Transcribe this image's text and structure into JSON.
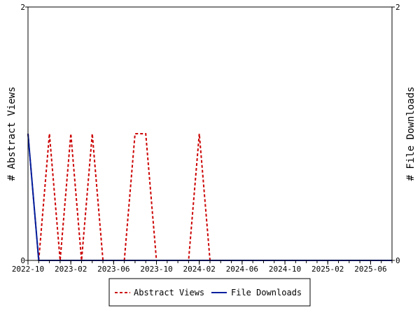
{
  "chart_data": {
    "type": "line",
    "ylabel_left": "# Abstract Views",
    "ylabel_right": "# File Downloads",
    "ylim_left": [
      0,
      2
    ],
    "ylim_right": [
      0,
      2
    ],
    "y_ticks_left": [
      0,
      2
    ],
    "y_ticks_right": [
      0,
      2
    ],
    "x_range": [
      "2022-10",
      "2025-08"
    ],
    "x_tick_labels": [
      "2022-10",
      "2023-02",
      "2023-06",
      "2023-10",
      "2024-02",
      "2024-06",
      "2024-10",
      "2025-02",
      "2025-06"
    ],
    "legend_position": "bottom-center",
    "series": [
      {
        "name": "Abstract Views",
        "color": "#cc0000",
        "style": "dashed",
        "axis": "left",
        "points": [
          [
            "2022-10",
            1
          ],
          [
            "2022-11",
            0
          ],
          [
            "2022-12",
            1
          ],
          [
            "2023-01",
            0
          ],
          [
            "2023-02",
            1
          ],
          [
            "2023-03",
            0
          ],
          [
            "2023-04",
            1
          ],
          [
            "2023-05",
            0
          ],
          [
            "2023-06",
            0
          ],
          [
            "2023-07",
            0
          ],
          [
            "2023-08",
            1
          ],
          [
            "2023-09",
            1
          ],
          [
            "2023-10",
            0
          ],
          [
            "2023-11",
            0
          ],
          [
            "2023-12",
            0
          ],
          [
            "2024-01",
            0
          ],
          [
            "2024-02",
            1
          ],
          [
            "2024-03",
            0
          ],
          [
            "2024-04",
            0
          ],
          [
            "2024-05",
            0
          ],
          [
            "2024-06",
            0
          ],
          [
            "2024-07",
            0
          ],
          [
            "2024-08",
            0
          ],
          [
            "2024-09",
            0
          ],
          [
            "2024-10",
            0
          ],
          [
            "2024-11",
            0
          ],
          [
            "2024-12",
            0
          ],
          [
            "2025-01",
            0
          ],
          [
            "2025-02",
            0
          ],
          [
            "2025-03",
            0
          ],
          [
            "2025-04",
            0
          ],
          [
            "2025-05",
            0
          ],
          [
            "2025-06",
            0
          ],
          [
            "2025-07",
            0
          ],
          [
            "2025-08",
            0
          ]
        ]
      },
      {
        "name": "File Downloads",
        "color": "#00209f",
        "style": "solid",
        "axis": "right",
        "points": [
          [
            "2022-10",
            1
          ],
          [
            "2022-11",
            0
          ],
          [
            "2022-12",
            0
          ],
          [
            "2023-01",
            0
          ],
          [
            "2023-02",
            0
          ],
          [
            "2023-03",
            0
          ],
          [
            "2023-04",
            0
          ],
          [
            "2023-05",
            0
          ],
          [
            "2023-06",
            0
          ],
          [
            "2023-07",
            0
          ],
          [
            "2023-08",
            0
          ],
          [
            "2023-09",
            0
          ],
          [
            "2023-10",
            0
          ],
          [
            "2023-11",
            0
          ],
          [
            "2023-12",
            0
          ],
          [
            "2024-01",
            0
          ],
          [
            "2024-02",
            0
          ],
          [
            "2024-03",
            0
          ],
          [
            "2024-04",
            0
          ],
          [
            "2024-05",
            0
          ],
          [
            "2024-06",
            0
          ],
          [
            "2024-07",
            0
          ],
          [
            "2024-08",
            0
          ],
          [
            "2024-09",
            0
          ],
          [
            "2024-10",
            0
          ],
          [
            "2024-11",
            0
          ],
          [
            "2024-12",
            0
          ],
          [
            "2025-01",
            0
          ],
          [
            "2025-02",
            0
          ],
          [
            "2025-03",
            0
          ],
          [
            "2025-04",
            0
          ],
          [
            "2025-05",
            0
          ],
          [
            "2025-06",
            0
          ],
          [
            "2025-07",
            0
          ],
          [
            "2025-08",
            0
          ]
        ]
      }
    ]
  }
}
